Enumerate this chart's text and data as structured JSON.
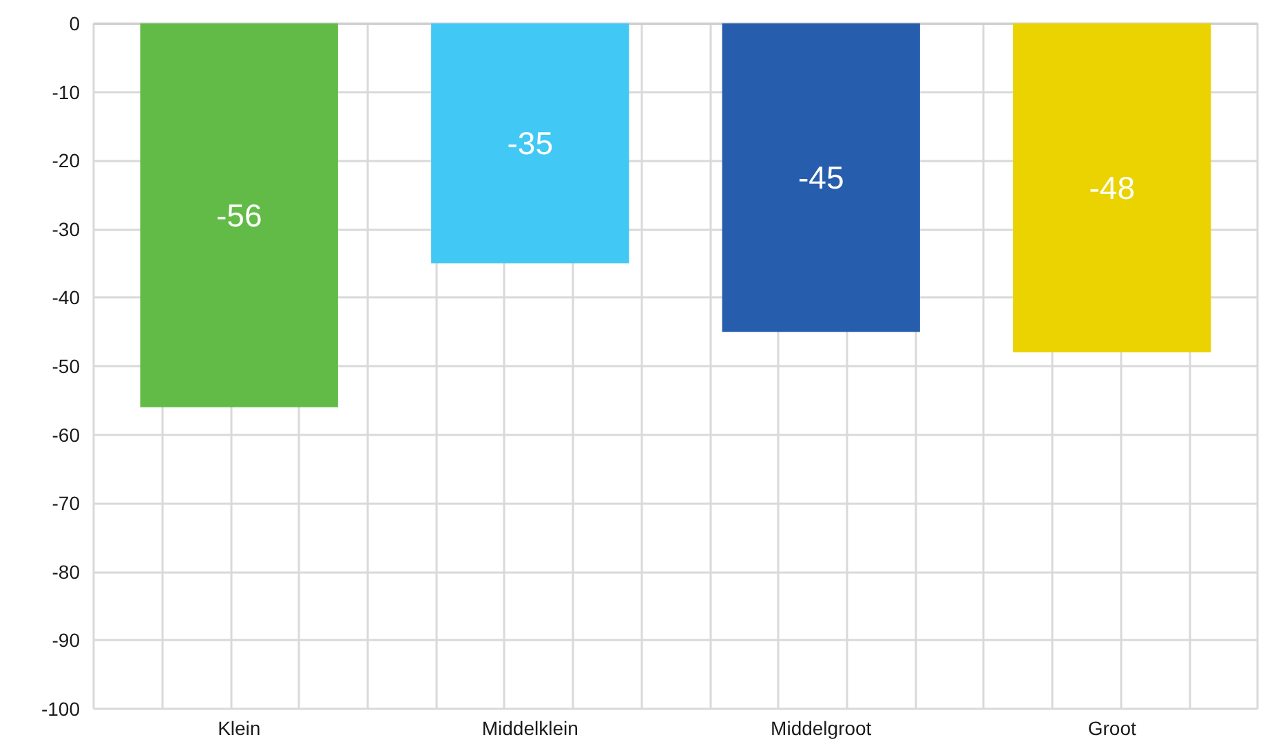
{
  "chart_data": {
    "type": "bar",
    "categories": [
      "Klein",
      "Middelklein",
      "Middelgroot",
      "Groot"
    ],
    "values": [
      -56,
      -35,
      -45,
      -48
    ],
    "colors": [
      "#62bb46",
      "#41c8f4",
      "#265ead",
      "#ead300"
    ],
    "ylim": [
      -100,
      0
    ],
    "yticks": [
      -100,
      -90,
      -80,
      -70,
      -60,
      -50,
      -40,
      -30,
      -20,
      -10,
      0
    ],
    "grid": true,
    "data_labels": true
  }
}
